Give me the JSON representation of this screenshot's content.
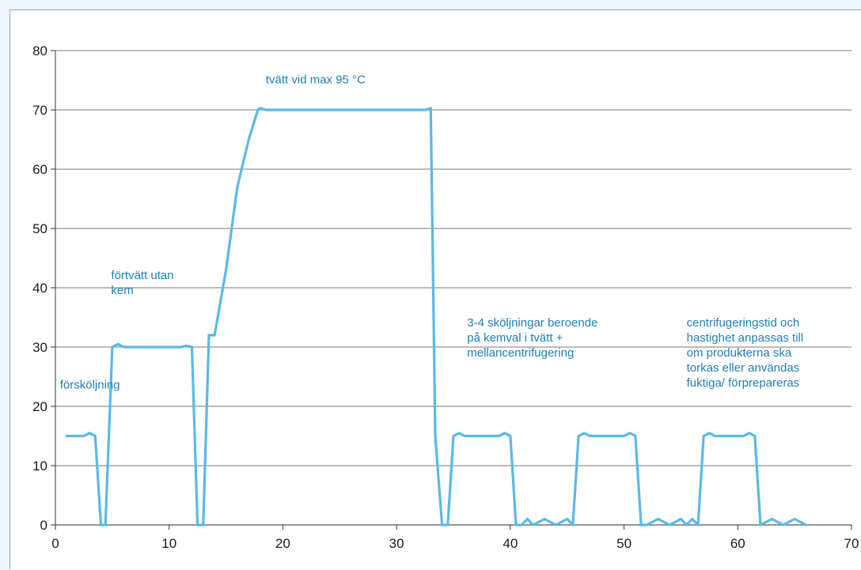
{
  "chart_data": {
    "type": "line",
    "title": "",
    "xlabel": "",
    "ylabel": "",
    "xlim": [
      0,
      70
    ],
    "ylim": [
      0,
      80
    ],
    "x_ticks": [
      0,
      10,
      20,
      30,
      40,
      50,
      60,
      70
    ],
    "y_ticks": [
      0,
      10,
      20,
      30,
      40,
      50,
      60,
      70,
      80
    ],
    "grid": "horizontal",
    "line_color": "#5bb8e8",
    "annotation_color": "#1f7fb6",
    "series": [
      {
        "x": [
          1,
          2.5,
          3,
          3.5,
          4,
          4.4,
          5,
          5.5,
          6,
          8,
          11,
          11.5,
          12,
          12.5,
          13,
          13.5,
          14,
          15,
          16,
          17,
          17.8,
          18,
          18.5,
          19,
          25,
          30,
          32,
          32.5,
          33,
          33.4,
          34,
          34.5,
          35,
          35.5,
          36,
          39,
          39.5,
          40,
          40.5,
          41,
          41.5,
          42,
          43,
          44,
          45,
          45.5,
          46,
          46.5,
          47,
          50,
          50.5,
          51,
          51.5,
          52,
          53,
          54,
          55,
          55.5,
          56,
          56.5,
          57,
          57.5,
          58,
          60.5,
          61,
          61.5,
          62,
          63,
          64,
          65,
          66
        ],
        "y": [
          15,
          15,
          15.5,
          15,
          0,
          0,
          30,
          30.5,
          30,
          30,
          30,
          30.2,
          30,
          0,
          0,
          32,
          32,
          43,
          57,
          65,
          70,
          70.3,
          70,
          70,
          70,
          70,
          70,
          70,
          70.3,
          15,
          0,
          0,
          15,
          15.5,
          15,
          15,
          15.5,
          15,
          0,
          0,
          1,
          0,
          1,
          0,
          1,
          0,
          15,
          15.5,
          15,
          15,
          15.5,
          15,
          0,
          0,
          1,
          0,
          1,
          0,
          1,
          0,
          15,
          15.5,
          15,
          15,
          15.5,
          15,
          0,
          1,
          0,
          1,
          0
        ]
      }
    ],
    "annotations": [
      {
        "x": 0.4,
        "y": 23,
        "lines": [
          "försköljning"
        ]
      },
      {
        "x": 4.9,
        "y": 41.5,
        "lines": [
          "förtvätt utan",
          "kem"
        ]
      },
      {
        "x": 18.5,
        "y": 74.5,
        "lines": [
          "tvätt vid max 95 °C"
        ]
      },
      {
        "x": 36.2,
        "y": 33.5,
        "lines": [
          "3-4 sköljningar beroende",
          "på kemval i tvätt +",
          "mellancentrifugering"
        ]
      },
      {
        "x": 55.5,
        "y": 33.5,
        "lines": [
          "centrifugeringstid och",
          "hastighet anpassas till",
          "om produkterna ska",
          "torkas eller användas",
          "fuktiga/ förprepareras"
        ]
      }
    ]
  }
}
